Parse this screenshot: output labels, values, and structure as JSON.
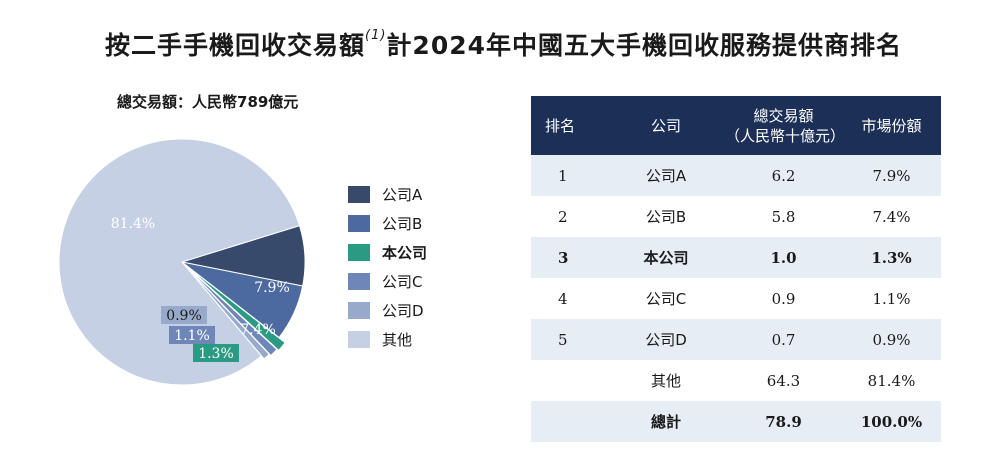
{
  "title": {
    "main": "按二手手機回收交易額",
    "note": "(1)",
    "tail": "計2024年中國五大手機回收服務提供商排名"
  },
  "total_label": "總交易額：人民幣789億元",
  "colors": {
    "company_a": "#374a6c",
    "company_b": "#4c69a0",
    "our_company": "#2a9a83",
    "company_c": "#6f86b9",
    "company_d": "#98aacb",
    "others": "#c5d0e4",
    "header_bg": "#1c2f56",
    "row_shade": "#e7edf5"
  },
  "chart_data": {
    "type": "pie",
    "title": "",
    "slices": [
      {
        "name": "公司A",
        "value": 7.9,
        "label": "7.9%",
        "color": "#374a6c"
      },
      {
        "name": "公司B",
        "value": 7.4,
        "label": "7.4%",
        "color": "#4c69a0"
      },
      {
        "name": "本公司",
        "value": 1.3,
        "label": "1.3%",
        "color": "#2a9a83"
      },
      {
        "name": "公司C",
        "value": 1.1,
        "label": "1.1%",
        "color": "#6f86b9"
      },
      {
        "name": "公司D",
        "value": 0.9,
        "label": "0.9%",
        "color": "#98aacb"
      },
      {
        "name": "其他",
        "value": 81.4,
        "label": "81.4%",
        "color": "#c5d0e4"
      }
    ],
    "legend_position": "right"
  },
  "legend": [
    {
      "label": "公司A",
      "color": "#374a6c"
    },
    {
      "label": "公司B",
      "color": "#4c69a0"
    },
    {
      "label": "本公司",
      "color": "#2a9a83"
    },
    {
      "label": "公司C",
      "color": "#6f86b9"
    },
    {
      "label": "公司D",
      "color": "#98aacb"
    },
    {
      "label": "其他",
      "color": "#c5d0e4"
    }
  ],
  "table": {
    "headers": {
      "rank": "排名",
      "company": "公司",
      "gtv_line1": "總交易額",
      "gtv_line2": "（人民幣十億元）",
      "share": "市場份額"
    },
    "rows": [
      {
        "rank": "1",
        "company": "公司A",
        "gtv": "6.2",
        "share": "7.9%"
      },
      {
        "rank": "2",
        "company": "公司B",
        "gtv": "5.8",
        "share": "7.4%"
      },
      {
        "rank": "3",
        "company": "本公司",
        "gtv": "1.0",
        "share": "1.3%"
      },
      {
        "rank": "4",
        "company": "公司C",
        "gtv": "0.9",
        "share": "1.1%"
      },
      {
        "rank": "5",
        "company": "公司D",
        "gtv": "0.7",
        "share": "0.9%"
      },
      {
        "rank": "",
        "company": "其他",
        "gtv": "64.3",
        "share": "81.4%"
      },
      {
        "rank": "",
        "company": "總計",
        "gtv": "78.9",
        "share": "100.0%"
      }
    ]
  }
}
